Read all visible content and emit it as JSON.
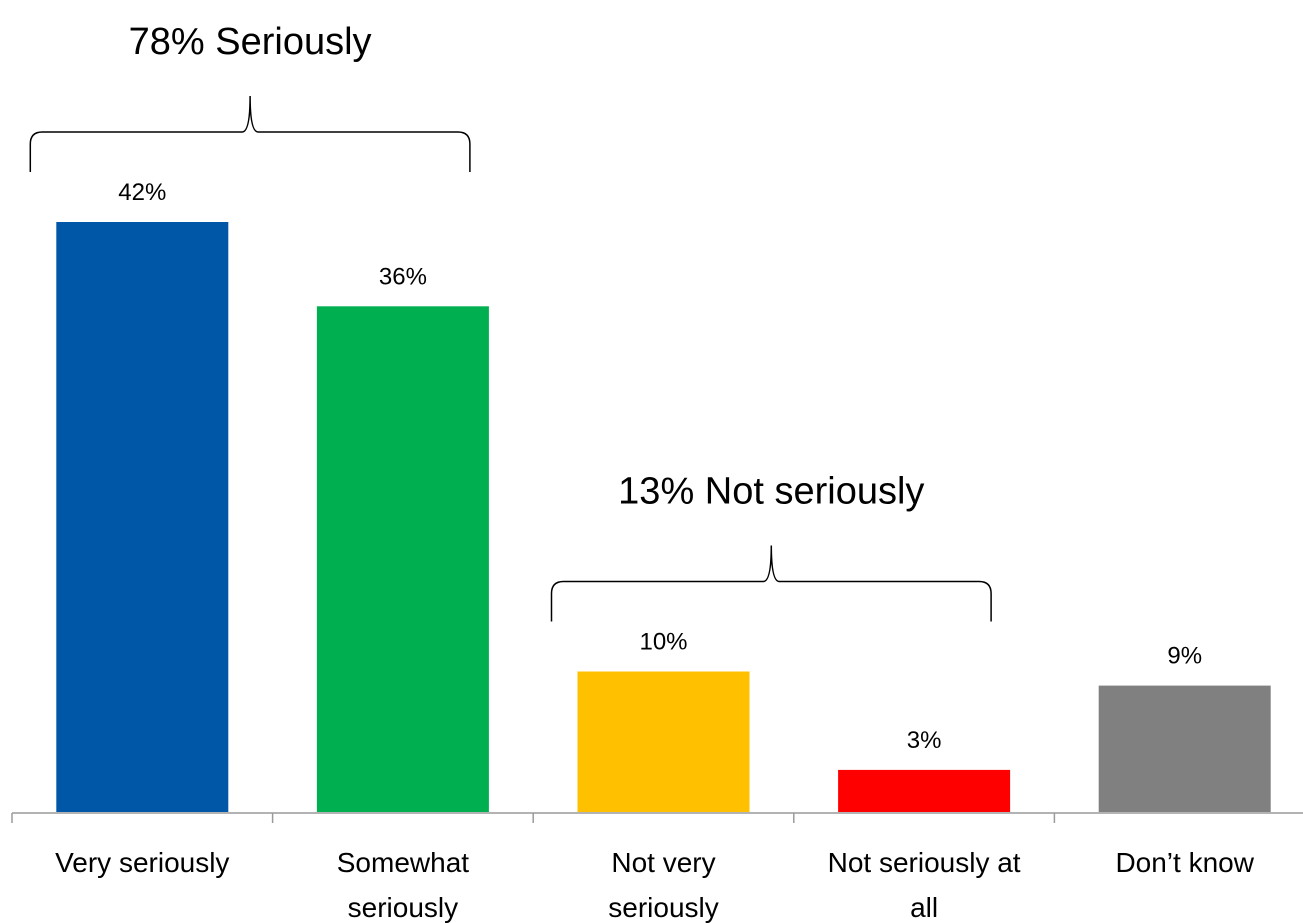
{
  "chart_data": {
    "type": "bar",
    "categories": [
      "Very seriously",
      "Somewhat seriously",
      "Not very seriously",
      "Not seriously at all",
      "Don’t know"
    ],
    "category_lines": [
      [
        "Very seriously"
      ],
      [
        "Somewhat",
        "seriously"
      ],
      [
        "Not very",
        "seriously"
      ],
      [
        "Not seriously at",
        "all"
      ],
      [
        "Don’t know"
      ]
    ],
    "values": [
      42,
      36,
      10,
      3,
      9
    ],
    "data_labels": [
      "42%",
      "36%",
      "10%",
      "3%",
      "9%"
    ],
    "colors": [
      "#0057a8",
      "#00b050",
      "#ffc000",
      "#ff0000",
      "#808080"
    ],
    "ylim": [
      0,
      42
    ],
    "grid": false,
    "legend": "none",
    "groups": [
      {
        "label": "78% Seriously",
        "from": 0,
        "to": 1
      },
      {
        "label": "13% Not seriously",
        "from": 2,
        "to": 3
      }
    ]
  }
}
